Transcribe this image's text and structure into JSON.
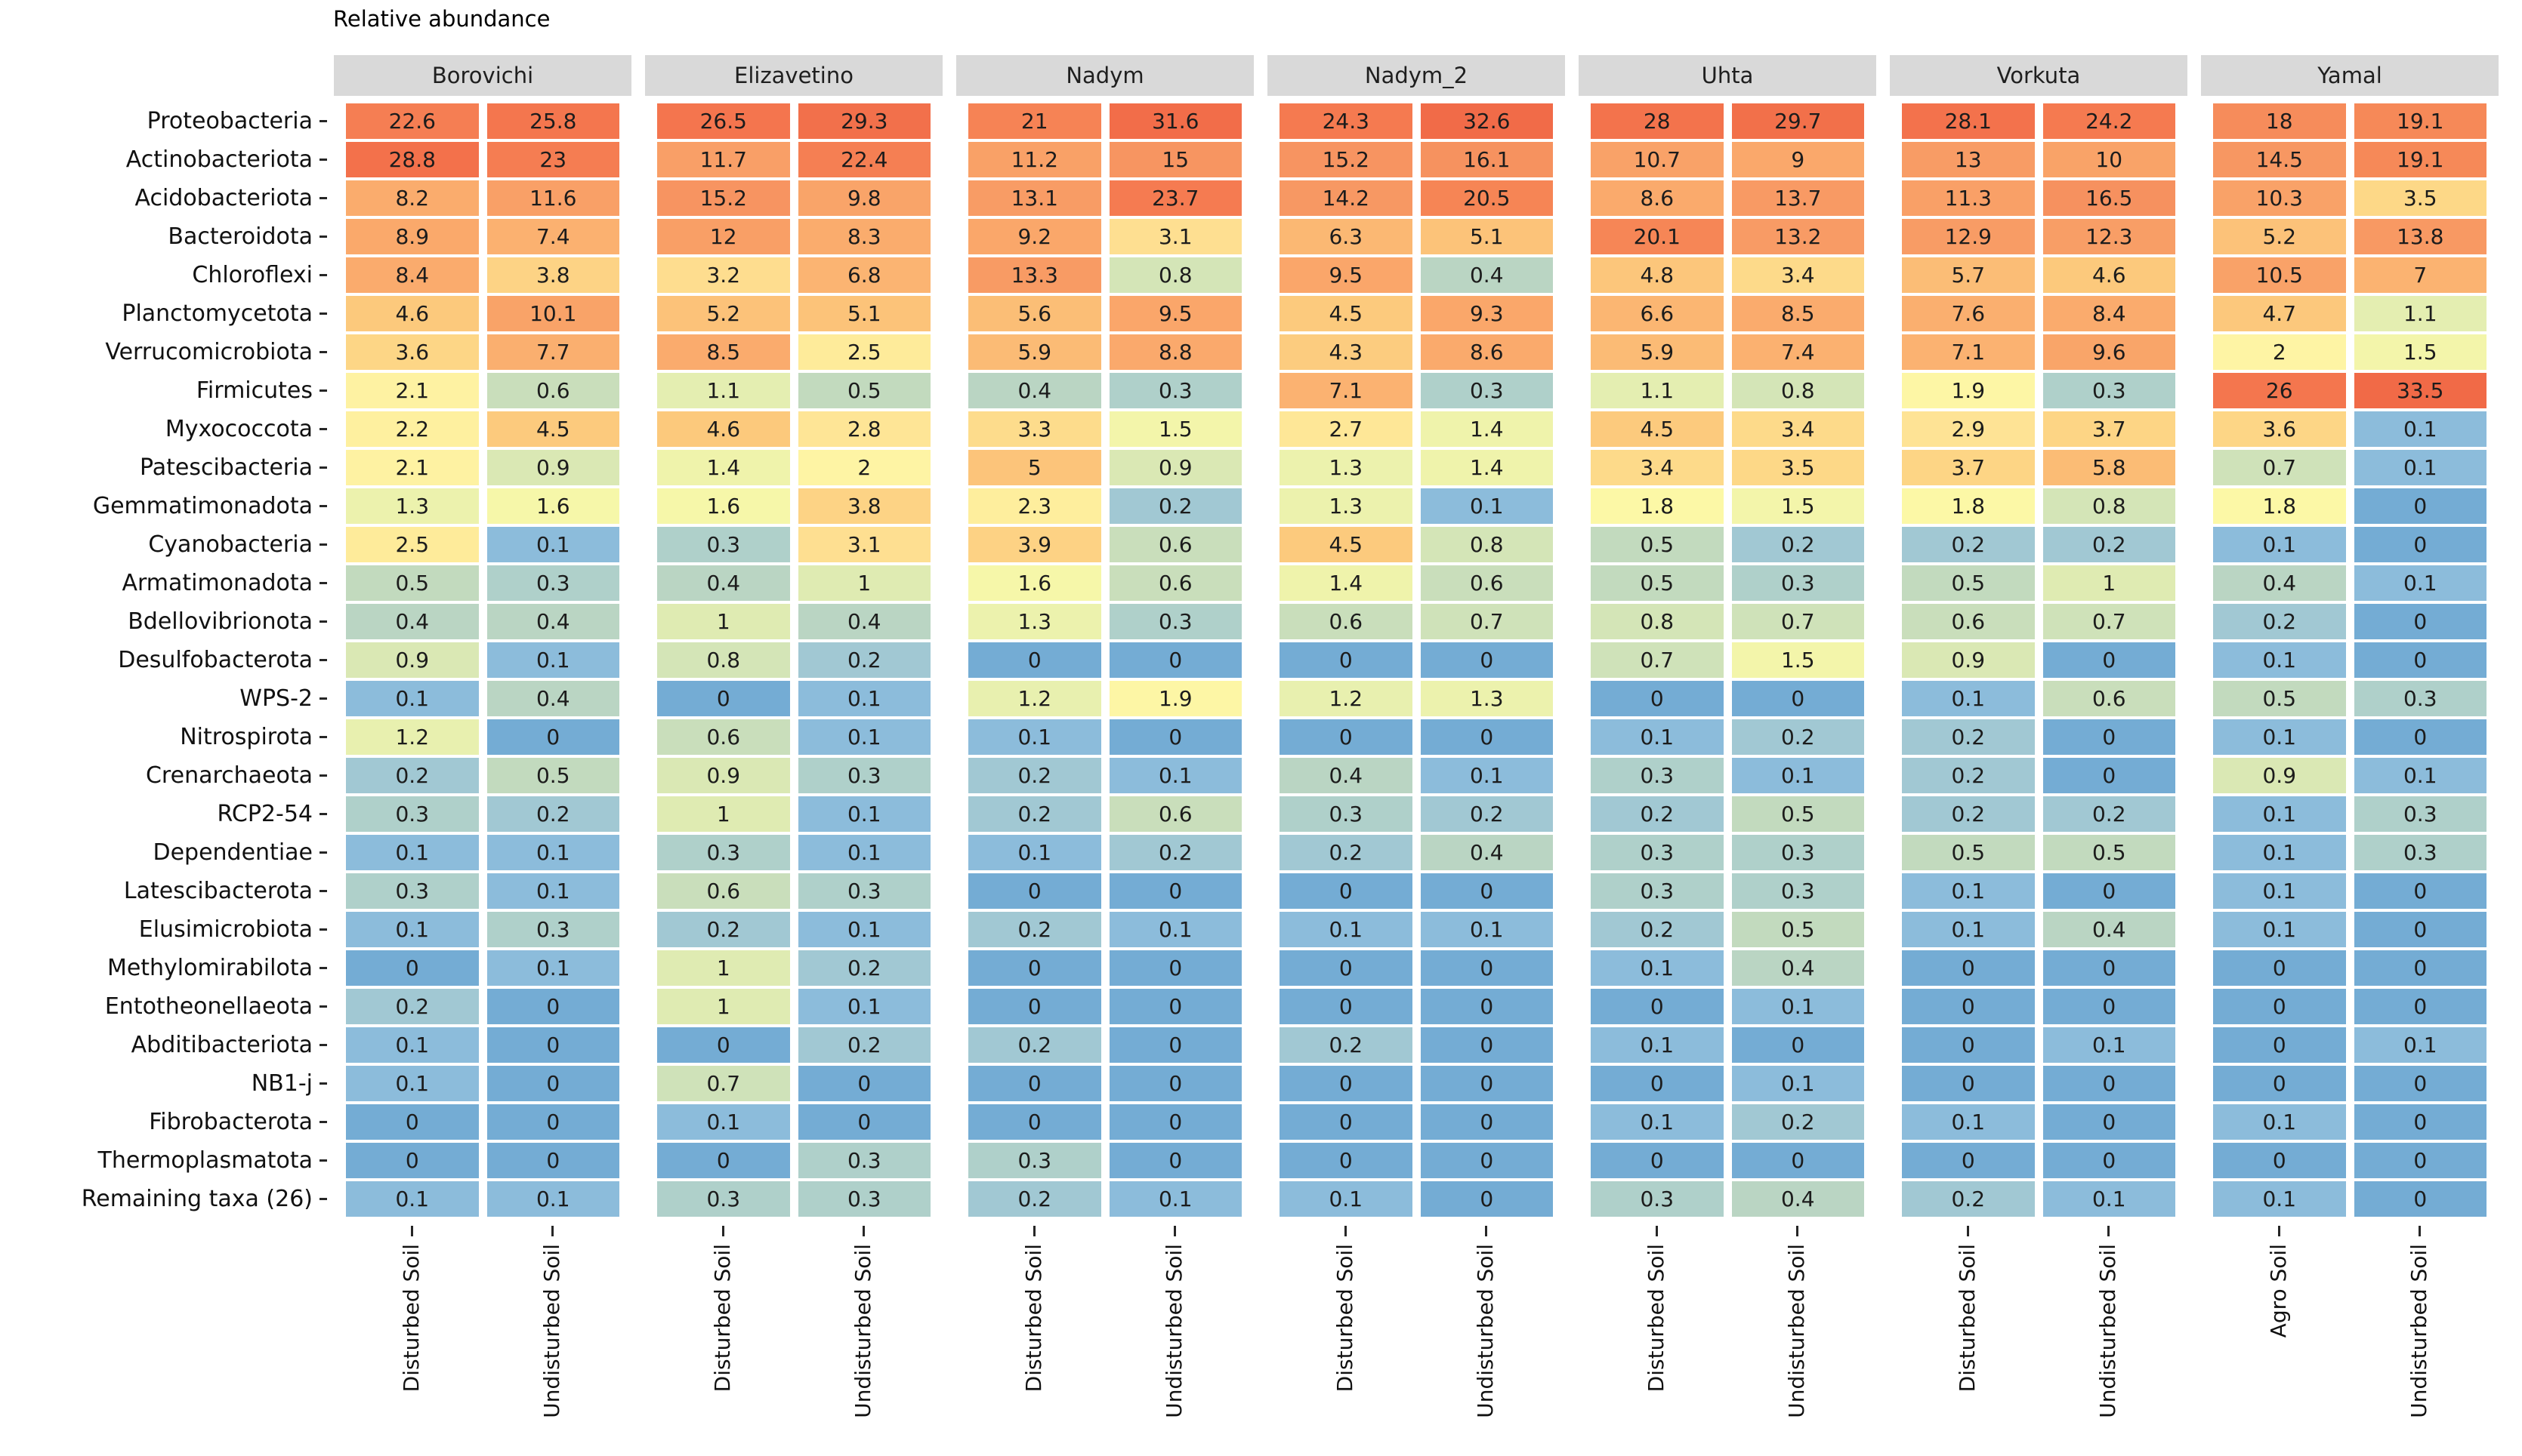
{
  "title": "Relative abundance",
  "chart_data": {
    "type": "heatmap",
    "title": "Relative abundance",
    "xlabel": "",
    "ylabel": "",
    "legend": false,
    "grid": false,
    "rows": [
      "Proteobacteria",
      "Actinobacteriota",
      "Acidobacteriota",
      "Bacteroidota",
      "Chloroflexi",
      "Planctomycetota",
      "Verrucomicrobiota",
      "Firmicutes",
      "Myxococcota",
      "Patescibacteria",
      "Gemmatimonadota",
      "Cyanobacteria",
      "Armatimonadota",
      "Bdellovibrionota",
      "Desulfobacterota",
      "WPS-2",
      "Nitrospirota",
      "Crenarchaeota",
      "RCP2-54",
      "Dependentiae",
      "Latescibacterota",
      "Elusimicrobiota",
      "Methylomirabilota",
      "Entotheonellaeota",
      "Abditibacteriota",
      "NB1-j",
      "Fibrobacterota",
      "Thermoplasmatota",
      "Remaining taxa (26)"
    ],
    "groups": [
      {
        "name": "Borovichi",
        "columns": [
          "Disturbed Soil",
          "Undisturbed Soil"
        ],
        "values": [
          [
            22.6,
            25.8
          ],
          [
            28.8,
            23
          ],
          [
            8.2,
            11.6
          ],
          [
            8.9,
            7.4
          ],
          [
            8.4,
            3.8
          ],
          [
            4.6,
            10.1
          ],
          [
            3.6,
            7.7
          ],
          [
            2.1,
            0.6
          ],
          [
            2.2,
            4.5
          ],
          [
            2.1,
            0.9
          ],
          [
            1.3,
            1.6
          ],
          [
            2.5,
            0.1
          ],
          [
            0.5,
            0.3
          ],
          [
            0.4,
            0.4
          ],
          [
            0.9,
            0.1
          ],
          [
            0.1,
            0.4
          ],
          [
            1.2,
            0
          ],
          [
            0.2,
            0.5
          ],
          [
            0.3,
            0.2
          ],
          [
            0.1,
            0.1
          ],
          [
            0.3,
            0.1
          ],
          [
            0.1,
            0.3
          ],
          [
            0,
            0.1
          ],
          [
            0.2,
            0
          ],
          [
            0.1,
            0
          ],
          [
            0.1,
            0
          ],
          [
            0,
            0
          ],
          [
            0,
            0
          ],
          [
            0.1,
            0.1
          ]
        ]
      },
      {
        "name": "Elizavetino",
        "columns": [
          "Disturbed Soil",
          "Undisturbed Soil"
        ],
        "values": [
          [
            26.5,
            29.3
          ],
          [
            11.7,
            22.4
          ],
          [
            15.2,
            9.8
          ],
          [
            12,
            8.3
          ],
          [
            3.2,
            6.8
          ],
          [
            5.2,
            5.1
          ],
          [
            8.5,
            2.5
          ],
          [
            1.1,
            0.5
          ],
          [
            4.6,
            2.8
          ],
          [
            1.4,
            2
          ],
          [
            1.6,
            3.8
          ],
          [
            0.3,
            3.1
          ],
          [
            0.4,
            1
          ],
          [
            1,
            0.4
          ],
          [
            0.8,
            0.2
          ],
          [
            0,
            0.1
          ],
          [
            0.6,
            0.1
          ],
          [
            0.9,
            0.3
          ],
          [
            1,
            0.1
          ],
          [
            0.3,
            0.1
          ],
          [
            0.6,
            0.3
          ],
          [
            0.2,
            0.1
          ],
          [
            1,
            0.2
          ],
          [
            1,
            0.1
          ],
          [
            0,
            0.2
          ],
          [
            0.7,
            0
          ],
          [
            0.1,
            0
          ],
          [
            0,
            0.3
          ],
          [
            0.3,
            0.3
          ]
        ]
      },
      {
        "name": "Nadym",
        "columns": [
          "Disturbed Soil",
          "Undisturbed Soil"
        ],
        "values": [
          [
            21,
            31.6
          ],
          [
            11.2,
            15
          ],
          [
            13.1,
            23.7
          ],
          [
            9.2,
            3.1
          ],
          [
            13.3,
            0.8
          ],
          [
            5.6,
            9.5
          ],
          [
            5.9,
            8.8
          ],
          [
            0.4,
            0.3
          ],
          [
            3.3,
            1.5
          ],
          [
            5,
            0.9
          ],
          [
            2.3,
            0.2
          ],
          [
            3.9,
            0.6
          ],
          [
            1.6,
            0.6
          ],
          [
            1.3,
            0.3
          ],
          [
            0,
            0
          ],
          [
            1.2,
            1.9
          ],
          [
            0.1,
            0
          ],
          [
            0.2,
            0.1
          ],
          [
            0.2,
            0.6
          ],
          [
            0.1,
            0.2
          ],
          [
            0,
            0
          ],
          [
            0.2,
            0.1
          ],
          [
            0,
            0
          ],
          [
            0,
            0
          ],
          [
            0.2,
            0
          ],
          [
            0,
            0
          ],
          [
            0,
            0
          ],
          [
            0.3,
            0
          ],
          [
            0.2,
            0.1
          ]
        ]
      },
      {
        "name": "Nadym_2",
        "columns": [
          "Disturbed Soil",
          "Undisturbed Soil"
        ],
        "values": [
          [
            24.3,
            32.6
          ],
          [
            15.2,
            16.1
          ],
          [
            14.2,
            20.5
          ],
          [
            6.3,
            5.1
          ],
          [
            9.5,
            0.4
          ],
          [
            4.5,
            9.3
          ],
          [
            4.3,
            8.6
          ],
          [
            7.1,
            0.3
          ],
          [
            2.7,
            1.4
          ],
          [
            1.3,
            1.4
          ],
          [
            1.3,
            0.1
          ],
          [
            4.5,
            0.8
          ],
          [
            1.4,
            0.6
          ],
          [
            0.6,
            0.7
          ],
          [
            0,
            0
          ],
          [
            1.2,
            1.3
          ],
          [
            0,
            0
          ],
          [
            0.4,
            0.1
          ],
          [
            0.3,
            0.2
          ],
          [
            0.2,
            0.4
          ],
          [
            0,
            0
          ],
          [
            0.1,
            0.1
          ],
          [
            0,
            0
          ],
          [
            0,
            0
          ],
          [
            0.2,
            0
          ],
          [
            0,
            0
          ],
          [
            0,
            0
          ],
          [
            0,
            0
          ],
          [
            0.1,
            0
          ]
        ]
      },
      {
        "name": "Uhta",
        "columns": [
          "Disturbed Soil",
          "Undisturbed Soil"
        ],
        "values": [
          [
            28,
            29.7
          ],
          [
            10.7,
            9
          ],
          [
            8.6,
            13.7
          ],
          [
            20.1,
            13.2
          ],
          [
            4.8,
            3.4
          ],
          [
            6.6,
            8.5
          ],
          [
            5.9,
            7.4
          ],
          [
            1.1,
            0.8
          ],
          [
            4.5,
            3.4
          ],
          [
            3.4,
            3.5
          ],
          [
            1.8,
            1.5
          ],
          [
            0.5,
            0.2
          ],
          [
            0.5,
            0.3
          ],
          [
            0.8,
            0.7
          ],
          [
            0.7,
            1.5
          ],
          [
            0,
            0
          ],
          [
            0.1,
            0.2
          ],
          [
            0.3,
            0.1
          ],
          [
            0.2,
            0.5
          ],
          [
            0.3,
            0.3
          ],
          [
            0.3,
            0.3
          ],
          [
            0.2,
            0.5
          ],
          [
            0.1,
            0.4
          ],
          [
            0,
            0.1
          ],
          [
            0.1,
            0
          ],
          [
            0,
            0.1
          ],
          [
            0.1,
            0.2
          ],
          [
            0,
            0
          ],
          [
            0.3,
            0.4
          ]
        ]
      },
      {
        "name": "Vorkuta",
        "columns": [
          "Disturbed Soil",
          "Undisturbed Soil"
        ],
        "values": [
          [
            28.1,
            24.2
          ],
          [
            13,
            10
          ],
          [
            11.3,
            16.5
          ],
          [
            12.9,
            12.3
          ],
          [
            5.7,
            4.6
          ],
          [
            7.6,
            8.4
          ],
          [
            7.1,
            9.6
          ],
          [
            1.9,
            0.3
          ],
          [
            2.9,
            3.7
          ],
          [
            3.7,
            5.8
          ],
          [
            1.8,
            0.8
          ],
          [
            0.2,
            0.2
          ],
          [
            0.5,
            1
          ],
          [
            0.6,
            0.7
          ],
          [
            0.9,
            0
          ],
          [
            0.1,
            0.6
          ],
          [
            0.2,
            0
          ],
          [
            0.2,
            0
          ],
          [
            0.2,
            0.2
          ],
          [
            0.5,
            0.5
          ],
          [
            0.1,
            0
          ],
          [
            0.1,
            0.4
          ],
          [
            0,
            0
          ],
          [
            0,
            0
          ],
          [
            0,
            0.1
          ],
          [
            0,
            0
          ],
          [
            0.1,
            0
          ],
          [
            0,
            0
          ],
          [
            0.2,
            0.1
          ]
        ]
      },
      {
        "name": "Yamal",
        "columns": [
          "Agro Soil",
          "Undisturbed Soil"
        ],
        "values": [
          [
            18,
            19.1
          ],
          [
            14.5,
            19.1
          ],
          [
            10.3,
            3.5
          ],
          [
            5.2,
            13.8
          ],
          [
            10.5,
            7
          ],
          [
            4.7,
            1.1
          ],
          [
            2,
            1.5
          ],
          [
            26,
            33.5
          ],
          [
            3.6,
            0.1
          ],
          [
            0.7,
            0.1
          ],
          [
            1.8,
            0
          ],
          [
            0.1,
            0
          ],
          [
            0.4,
            0.1
          ],
          [
            0.2,
            0
          ],
          [
            0.1,
            0
          ],
          [
            0.5,
            0.3
          ],
          [
            0.1,
            0
          ],
          [
            0.9,
            0.1
          ],
          [
            0.1,
            0.3
          ],
          [
            0.1,
            0.3
          ],
          [
            0.1,
            0
          ],
          [
            0.1,
            0
          ],
          [
            0,
            0
          ],
          [
            0,
            0
          ],
          [
            0,
            0.1
          ],
          [
            0,
            0
          ],
          [
            0.1,
            0
          ],
          [
            0,
            0
          ],
          [
            0.1,
            0
          ]
        ]
      }
    ],
    "color_scale": {
      "type": "RdYlBu reversed (blue=low, yellow=mid, red=high)",
      "strip_background": "#D9D9D9",
      "cell_gap_color": "#FFFFFF",
      "anchors": [
        [
          0,
          "#74ACD4"
        ],
        [
          0.1,
          "#8CBCDB"
        ],
        [
          0.2,
          "#A1C8D3"
        ],
        [
          0.3,
          "#AFD0CA"
        ],
        [
          0.4,
          "#BAD5C3"
        ],
        [
          0.5,
          "#C2DABE"
        ],
        [
          0.6,
          "#C9DEBB"
        ],
        [
          0.7,
          "#CFE2B9"
        ],
        [
          0.8,
          "#D4E5B7"
        ],
        [
          0.9,
          "#DAE8B4"
        ],
        [
          1,
          "#DFEBB2"
        ],
        [
          1.2,
          "#E8F0AF"
        ],
        [
          1.4,
          "#EFF3AB"
        ],
        [
          1.6,
          "#F6F7A9"
        ],
        [
          1.8,
          "#FCF8A6"
        ],
        [
          2,
          "#FEF4A4"
        ],
        [
          2.3,
          "#FEEE9D"
        ],
        [
          2.6,
          "#FEE998"
        ],
        [
          3,
          "#FEE194"
        ],
        [
          3.5,
          "#FDD887"
        ],
        [
          4,
          "#FDD083"
        ],
        [
          4.5,
          "#FCCA7D"
        ],
        [
          5,
          "#FCC47A"
        ],
        [
          6,
          "#FBBA74"
        ],
        [
          7,
          "#FBB371"
        ],
        [
          8,
          "#FAAD6E"
        ],
        [
          9,
          "#FAA86B"
        ],
        [
          10,
          "#F9A368"
        ],
        [
          11.5,
          "#F9A067"
        ],
        [
          13,
          "#F89C65"
        ],
        [
          15,
          "#F79561"
        ],
        [
          17,
          "#F68F5E"
        ],
        [
          20,
          "#F68656"
        ],
        [
          23,
          "#F57D52"
        ],
        [
          26,
          "#F4764E"
        ],
        [
          30,
          "#F26F4A"
        ],
        [
          33.5,
          "#F16A47"
        ]
      ]
    }
  }
}
